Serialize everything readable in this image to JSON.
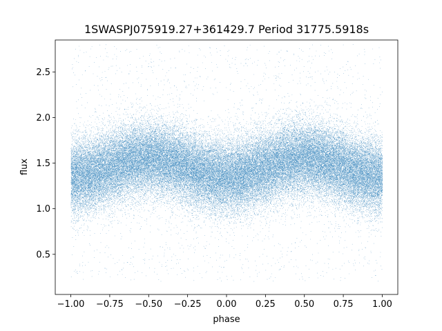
{
  "chart_data": {
    "type": "scatter",
    "title": "1SWASPJ075919.27+361429.7 Period 31775.5918s",
    "xlabel": "phase",
    "ylabel": "flux",
    "xlim": [
      -1.1,
      1.1
    ],
    "ylim": [
      0.06,
      2.85
    ],
    "xticks": [
      -1.0,
      -0.75,
      -0.5,
      -0.25,
      0.0,
      0.25,
      0.5,
      0.75,
      1.0
    ],
    "xtick_labels": [
      "−1.00",
      "−0.75",
      "−0.50",
      "−0.25",
      "0.00",
      "0.25",
      "0.50",
      "0.75",
      "1.00"
    ],
    "yticks": [
      0.5,
      1.0,
      1.5,
      2.0,
      2.5
    ],
    "ytick_labels": [
      "0.5",
      "1.0",
      "1.5",
      "2.0",
      "2.5"
    ],
    "grid": false,
    "legend": "none",
    "point_color": "#1f77b4",
    "phase_range": [
      -1.0,
      1.0
    ],
    "flux_range": [
      0.2,
      2.8
    ],
    "model": {
      "description": "double-humped phased light curve with Gaussian scatter",
      "mean_flux": 1.45,
      "amplitude": 0.1,
      "scatter_sigma": 0.2,
      "maxima_phase": [
        -0.5,
        0.5
      ],
      "minima_phase": [
        -1.0,
        0.0,
        1.0
      ]
    },
    "n_points": 70000
  }
}
